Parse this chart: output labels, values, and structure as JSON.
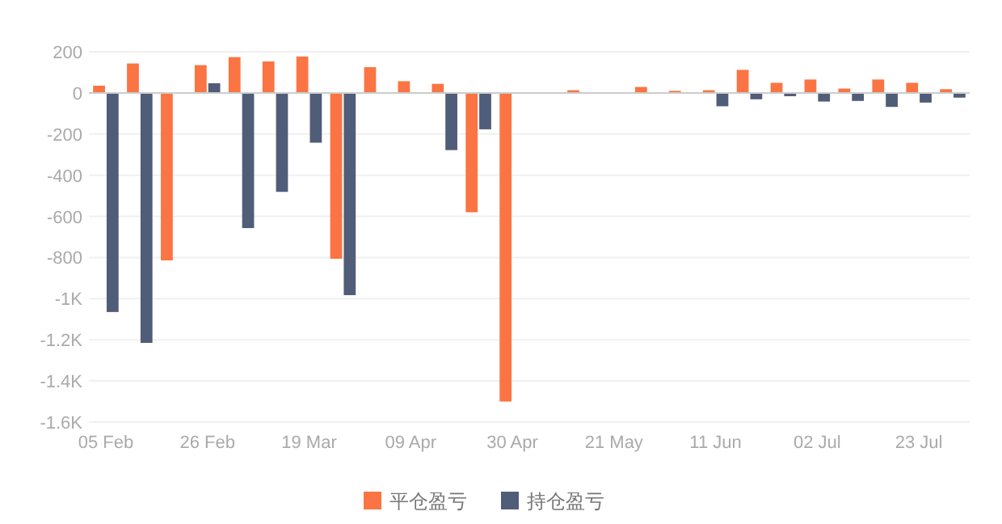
{
  "chart_data": {
    "type": "bar",
    "categories": [
      "05 Feb",
      null,
      null,
      "26 Feb",
      null,
      null,
      "19 Mar",
      null,
      null,
      "09 Apr",
      null,
      null,
      "30 Apr",
      null,
      null,
      "21 May",
      null,
      null,
      "11 Jun",
      null,
      null,
      "02 Jul",
      null,
      null,
      "23 Jul",
      null
    ],
    "series": [
      {
        "name": "平仓盈亏",
        "color": "#fb7443",
        "values": [
          35,
          143,
          -814,
          135,
          174,
          153,
          177,
          -806,
          125,
          57,
          44,
          -580,
          -1500,
          0,
          13,
          null,
          29,
          10,
          13,
          112,
          49,
          65,
          21,
          65,
          49,
          18
        ]
      },
      {
        "name": "持仓盈亏",
        "color": "#505d78",
        "values": [
          -1065,
          -1215,
          0,
          47,
          -657,
          -481,
          -242,
          -983,
          0,
          0,
          -278,
          -177,
          0,
          0,
          0,
          0,
          null,
          0,
          -65,
          -31,
          -16,
          -42,
          -39,
          -68,
          -47,
          -23
        ]
      }
    ],
    "ylim": [
      -1600,
      200
    ],
    "yticks": [
      {
        "value": -1600,
        "label": "-1.6K"
      },
      {
        "value": -1400,
        "label": "-1.4K"
      },
      {
        "value": -1200,
        "label": "-1.2K"
      },
      {
        "value": -1000,
        "label": "-1K"
      },
      -800,
      -600,
      -400,
      -200,
      0,
      200
    ],
    "grid": "y",
    "legend": "bottom"
  }
}
